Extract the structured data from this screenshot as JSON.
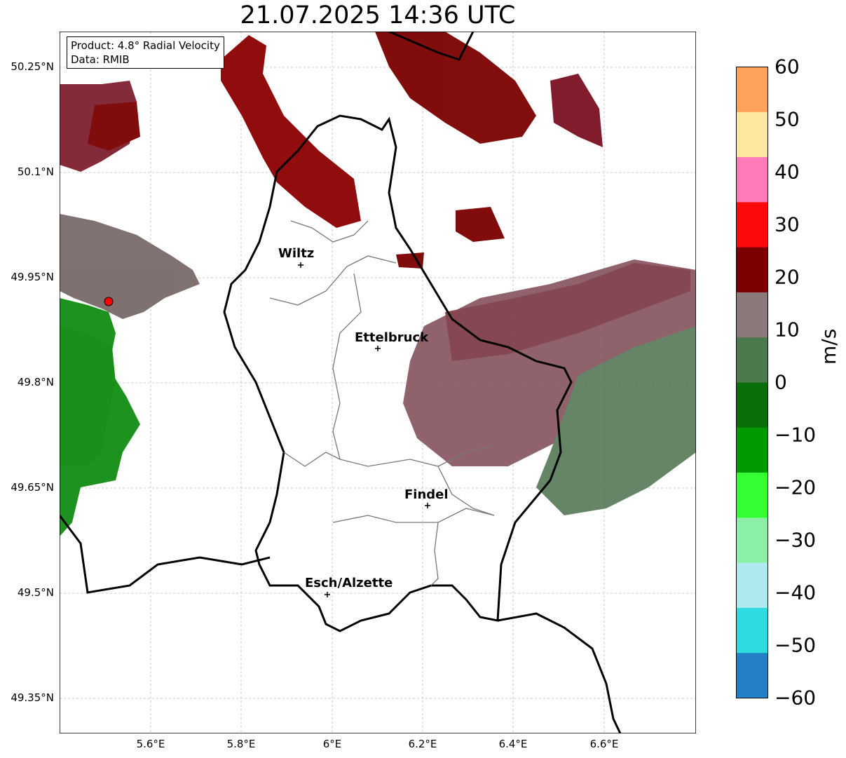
{
  "title": "21.07.2025 14:36 UTC",
  "info": {
    "product": "Product: 4.8° Radial Velocity",
    "source": "Data: RMIB"
  },
  "lat_ticks": [
    "50.25°N",
    "50.1°N",
    "49.95°N",
    "49.8°N",
    "49.65°N",
    "49.5°N",
    "49.35°N"
  ],
  "lon_ticks": [
    "5.6°E",
    "5.8°E",
    "6°E",
    "6.2°E",
    "6.4°E",
    "6.6°E"
  ],
  "cities": [
    {
      "name": "Wiltz"
    },
    {
      "name": "Ettelbruck"
    },
    {
      "name": "Findel"
    },
    {
      "name": "Esch/Alzette"
    }
  ],
  "colorbar": {
    "unit": "m/s",
    "ticks": [
      "60",
      "50",
      "40",
      "30",
      "20",
      "10",
      "0",
      "−10",
      "−20",
      "−30",
      "−40",
      "−50",
      "−60"
    ],
    "range": [
      -60,
      60
    ],
    "colors": [
      "#2380c8",
      "#2ddbe0",
      "#aee9ef",
      "#8bf0a6",
      "#33ff33",
      "#009a00",
      "#0a6e0a",
      "#4d7a4d",
      "#8c7a7a",
      "#7a0000",
      "#ff0a0a",
      "#ff7ab8",
      "#ffe7a0",
      "#ffa259"
    ]
  }
}
